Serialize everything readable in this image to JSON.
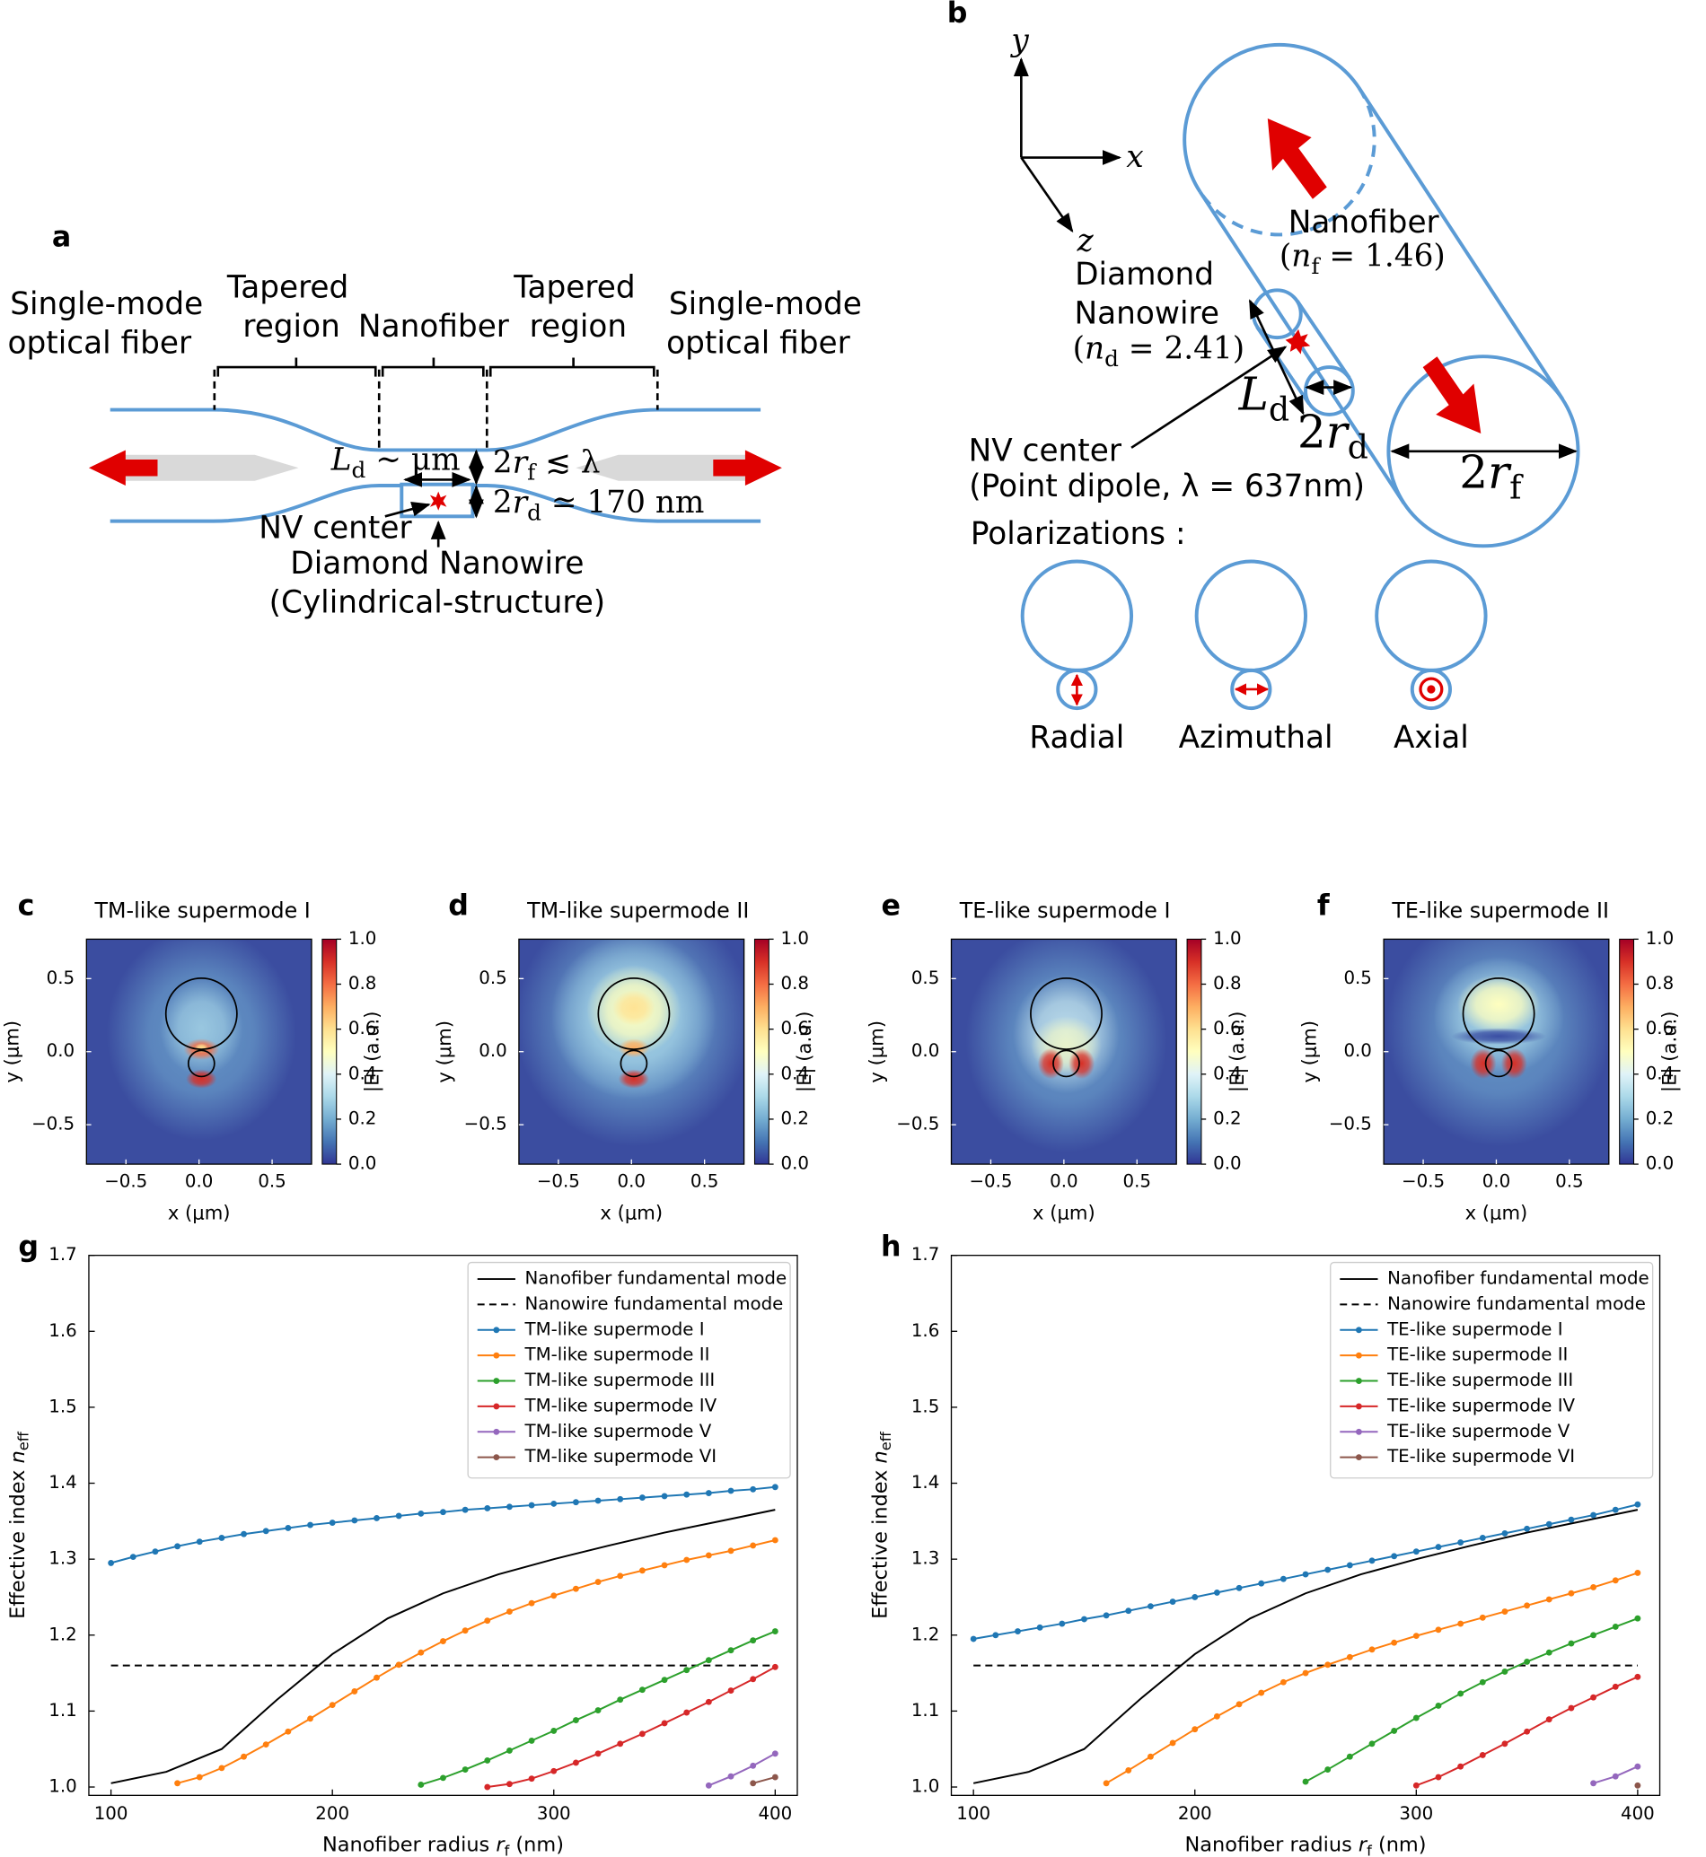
{
  "diagram_a": {
    "label": "a",
    "left_fiber": [
      "Single-mode",
      "optical fiber"
    ],
    "right_fiber": [
      "Single-mode",
      "optical fiber"
    ],
    "left_taper": [
      "Tapered",
      "region"
    ],
    "right_taper": [
      "Tapered",
      "region"
    ],
    "nanofiber": "Nanofiber",
    "length": [
      "L",
      "d",
      " ~ μm"
    ],
    "fiber_diameter": [
      "2",
      "r",
      "f",
      " ≲ λ"
    ],
    "wire_diameter": [
      "2",
      "r",
      "d",
      " ≃ 170 nm"
    ],
    "nv_center": "NV center",
    "nanowire": [
      "Diamond Nanowire",
      "(Cylindrical-structure)"
    ]
  },
  "diagram_b": {
    "label": "b",
    "axis_y": "y",
    "axis_x": "x",
    "axis_z": "z",
    "nanofiber": "Nanofiber",
    "nanofiber_index": [
      "(",
      "n",
      "f",
      " = 1.46)"
    ],
    "diamond": [
      "Diamond",
      "Nanowire"
    ],
    "nanowire_index": [
      "(",
      "n",
      "d",
      " = 2.41)"
    ],
    "length": [
      "L",
      "d"
    ],
    "wire_diameter": [
      "2",
      "r",
      "d"
    ],
    "fiber_diameter": [
      "2",
      "r",
      "f"
    ],
    "nv_center": "NV center",
    "dipole": "(Point dipole, λ = 637nm)",
    "polarizations": "Polarizations :",
    "modes": [
      "Radial",
      "Azimuthal",
      "Axial"
    ]
  },
  "chart_data": [
    {
      "type": "heatmap",
      "panel": "c",
      "title": "TM-like supermode I",
      "xlabel": "x (μm)",
      "ylabel": "y (μm)",
      "xlim": [
        -0.77,
        0.77
      ],
      "ylim": [
        -0.77,
        0.77
      ],
      "xticks": [
        {
          "value": -0.5,
          "label": "−0.5"
        },
        {
          "value": 0,
          "label": "0.0"
        },
        0.5
      ],
      "yticks": [
        {
          "value": -0.5,
          "label": "−0.5"
        },
        {
          "value": 0,
          "label": "0.0"
        },
        0.5
      ],
      "colormap": "RdYlBu_r",
      "colorbar_label": "|E| (a.u.)",
      "colorbar_lim": [
        0,
        1
      ],
      "colorbar_ticks": [
        {
          "value": 0,
          "label": "0.0"
        },
        0.2,
        0.4,
        0.6,
        0.8,
        {
          "value": 1,
          "label": "1.0"
        }
      ]
    },
    {
      "type": "heatmap",
      "panel": "d",
      "title": "TM-like supermode II",
      "xlabel": "x (μm)",
      "ylabel": "y (μm)",
      "xlim": [
        -0.77,
        0.77
      ],
      "ylim": [
        -0.77,
        0.77
      ],
      "xticks": [
        {
          "value": -0.5,
          "label": "−0.5"
        },
        {
          "value": 0,
          "label": "0.0"
        },
        0.5
      ],
      "yticks": [
        {
          "value": -0.5,
          "label": "−0.5"
        },
        {
          "value": 0,
          "label": "0.0"
        },
        0.5
      ],
      "colormap": "RdYlBu_r",
      "colorbar_label": "|E| (a.u.)",
      "colorbar_lim": [
        0,
        1
      ],
      "colorbar_ticks": [
        {
          "value": 0,
          "label": "0.0"
        },
        0.2,
        0.4,
        0.6,
        0.8,
        {
          "value": 1,
          "label": "1.0"
        }
      ]
    },
    {
      "type": "heatmap",
      "panel": "e",
      "title": "TE-like supermode I",
      "xlabel": "x (μm)",
      "ylabel": "y (μm)",
      "xlim": [
        -0.77,
        0.77
      ],
      "ylim": [
        -0.77,
        0.77
      ],
      "xticks": [
        {
          "value": -0.5,
          "label": "−0.5"
        },
        {
          "value": 0,
          "label": "0.0"
        },
        0.5
      ],
      "yticks": [
        {
          "value": -0.5,
          "label": "−0.5"
        },
        {
          "value": 0,
          "label": "0.0"
        },
        0.5
      ],
      "colormap": "RdYlBu_r",
      "colorbar_label": "|E| (a.u.)",
      "colorbar_lim": [
        0,
        1
      ],
      "colorbar_ticks": [
        {
          "value": 0,
          "label": "0.0"
        },
        0.2,
        0.4,
        0.6,
        0.8,
        {
          "value": 1,
          "label": "1.0"
        }
      ]
    },
    {
      "type": "heatmap",
      "panel": "f",
      "title": "TE-like supermode II",
      "xlabel": "x (μm)",
      "ylabel": "y (μm)",
      "xlim": [
        -0.77,
        0.77
      ],
      "ylim": [
        -0.77,
        0.77
      ],
      "xticks": [
        {
          "value": -0.5,
          "label": "−0.5"
        },
        {
          "value": 0,
          "label": "0.0"
        },
        0.5
      ],
      "yticks": [
        {
          "value": -0.5,
          "label": "−0.5"
        },
        {
          "value": 0,
          "label": "0.0"
        },
        0.5
      ],
      "colormap": "RdYlBu_r",
      "colorbar_label": "|E| (a.u.)",
      "colorbar_lim": [
        0,
        1
      ],
      "colorbar_ticks": [
        {
          "value": 0,
          "label": "0.0"
        },
        0.2,
        0.4,
        0.6,
        0.8,
        {
          "value": 1,
          "label": "1.0"
        }
      ]
    },
    {
      "type": "line",
      "panel": "g",
      "xlabel": [
        "Nanofiber radius ",
        "r",
        "f",
        " (nm)"
      ],
      "ylabel": [
        "Effective index ",
        "n",
        "eff"
      ],
      "xlim": [
        90,
        410
      ],
      "ylim": [
        0.989,
        1.7
      ],
      "xticks": [
        100,
        200,
        300,
        400
      ],
      "yticks": [
        {
          "value": 1,
          "label": "1.0"
        },
        1.1,
        1.2,
        1.3,
        1.4,
        1.5,
        1.6,
        1.7
      ],
      "legend": "upper right",
      "series": [
        {
          "name": "Nanofiber fundamental mode",
          "color": "#000000",
          "linestyle": "solid",
          "marker": false,
          "x": [
            100,
            125,
            150,
            175,
            200,
            225,
            250,
            275,
            300,
            325,
            350,
            375,
            400
          ],
          "values": [
            1.005,
            1.02,
            1.05,
            1.115,
            1.175,
            1.222,
            1.255,
            1.28,
            1.3,
            1.318,
            1.335,
            1.35,
            1.365
          ]
        },
        {
          "name": "Nanowire fundamental mode",
          "color": "#000000",
          "linestyle": "dashed",
          "marker": false,
          "x": [
            100,
            400
          ],
          "values": [
            1.16,
            1.16
          ]
        },
        {
          "name": "TM-like supermode I",
          "color": "#1f77b4",
          "linestyle": "solid",
          "marker": true,
          "x": [
            100,
            110,
            120,
            130,
            140,
            150,
            160,
            170,
            180,
            190,
            200,
            210,
            220,
            230,
            240,
            250,
            260,
            270,
            280,
            290,
            300,
            310,
            320,
            330,
            340,
            350,
            360,
            370,
            380,
            390,
            400
          ],
          "values": [
            1.295,
            1.303,
            1.31,
            1.317,
            1.323,
            1.328,
            1.333,
            1.337,
            1.341,
            1.345,
            1.348,
            1.351,
            1.354,
            1.357,
            1.36,
            1.362,
            1.365,
            1.367,
            1.369,
            1.371,
            1.373,
            1.375,
            1.377,
            1.379,
            1.381,
            1.383,
            1.385,
            1.387,
            1.39,
            1.392,
            1.395
          ]
        },
        {
          "name": "TM-like supermode II",
          "color": "#ff7f0e",
          "linestyle": "solid",
          "marker": true,
          "x": [
            130,
            140,
            150,
            160,
            170,
            180,
            190,
            200,
            210,
            220,
            230,
            240,
            250,
            260,
            270,
            280,
            290,
            300,
            310,
            320,
            330,
            340,
            350,
            360,
            370,
            380,
            390,
            400
          ],
          "values": [
            1.005,
            1.013,
            1.025,
            1.04,
            1.056,
            1.073,
            1.09,
            1.108,
            1.126,
            1.144,
            1.161,
            1.177,
            1.192,
            1.206,
            1.219,
            1.231,
            1.242,
            1.252,
            1.261,
            1.27,
            1.278,
            1.285,
            1.292,
            1.299,
            1.305,
            1.311,
            1.318,
            1.325
          ]
        },
        {
          "name": "TM-like supermode III",
          "color": "#2ca02c",
          "linestyle": "solid",
          "marker": true,
          "x": [
            240,
            250,
            260,
            270,
            280,
            290,
            300,
            310,
            320,
            330,
            340,
            350,
            360,
            370,
            380,
            390,
            400
          ],
          "values": [
            1.003,
            1.012,
            1.023,
            1.035,
            1.048,
            1.061,
            1.074,
            1.088,
            1.101,
            1.115,
            1.128,
            1.141,
            1.154,
            1.167,
            1.18,
            1.193,
            1.205
          ]
        },
        {
          "name": "TM-like supermode IV",
          "color": "#d62728",
          "linestyle": "solid",
          "marker": true,
          "x": [
            270,
            280,
            290,
            300,
            310,
            320,
            330,
            340,
            350,
            360,
            370,
            380,
            390,
            400
          ],
          "values": [
            1.0,
            1.004,
            1.011,
            1.021,
            1.032,
            1.044,
            1.057,
            1.07,
            1.084,
            1.098,
            1.112,
            1.127,
            1.142,
            1.158
          ]
        },
        {
          "name": "TM-like supermode V",
          "color": "#9467bd",
          "linestyle": "solid",
          "marker": true,
          "x": [
            370,
            380,
            390,
            400
          ],
          "values": [
            1.002,
            1.014,
            1.028,
            1.044
          ]
        },
        {
          "name": "TM-like supermode VI",
          "color": "#8c564b",
          "linestyle": "solid",
          "marker": true,
          "x": [
            390,
            400
          ],
          "values": [
            1.005,
            1.013
          ]
        }
      ]
    },
    {
      "type": "line",
      "panel": "h",
      "xlabel": [
        "Nanofiber radius ",
        "r",
        "f",
        " (nm)"
      ],
      "ylabel": [
        "Effective index ",
        "n",
        "eff"
      ],
      "xlim": [
        90,
        410
      ],
      "ylim": [
        0.989,
        1.7
      ],
      "xticks": [
        100,
        200,
        300,
        400
      ],
      "yticks": [
        {
          "value": 1,
          "label": "1.0"
        },
        1.1,
        1.2,
        1.3,
        1.4,
        1.5,
        1.6,
        1.7
      ],
      "legend": "upper right",
      "series": [
        {
          "name": "Nanofiber fundamental mode",
          "color": "#000000",
          "linestyle": "solid",
          "marker": false,
          "x": [
            100,
            125,
            150,
            175,
            200,
            225,
            250,
            275,
            300,
            325,
            350,
            375,
            400
          ],
          "values": [
            1.005,
            1.02,
            1.05,
            1.115,
            1.175,
            1.222,
            1.255,
            1.28,
            1.3,
            1.318,
            1.335,
            1.35,
            1.365
          ]
        },
        {
          "name": "Nanowire fundamental mode",
          "color": "#000000",
          "linestyle": "dashed",
          "marker": false,
          "x": [
            100,
            400
          ],
          "values": [
            1.16,
            1.16
          ]
        },
        {
          "name": "TE-like supermode I",
          "color": "#1f77b4",
          "linestyle": "solid",
          "marker": true,
          "x": [
            100,
            110,
            120,
            130,
            140,
            150,
            160,
            170,
            180,
            190,
            200,
            210,
            220,
            230,
            240,
            250,
            260,
            270,
            280,
            290,
            300,
            310,
            320,
            330,
            340,
            350,
            360,
            370,
            380,
            390,
            400
          ],
          "values": [
            1.195,
            1.2,
            1.205,
            1.21,
            1.215,
            1.221,
            1.226,
            1.232,
            1.238,
            1.244,
            1.25,
            1.256,
            1.262,
            1.268,
            1.274,
            1.28,
            1.286,
            1.292,
            1.298,
            1.304,
            1.31,
            1.316,
            1.322,
            1.328,
            1.334,
            1.34,
            1.346,
            1.352,
            1.358,
            1.365,
            1.372
          ]
        },
        {
          "name": "TE-like supermode II",
          "color": "#ff7f0e",
          "linestyle": "solid",
          "marker": true,
          "x": [
            160,
            170,
            180,
            190,
            200,
            210,
            220,
            230,
            240,
            250,
            260,
            270,
            280,
            290,
            300,
            310,
            320,
            330,
            340,
            350,
            360,
            370,
            380,
            390,
            400
          ],
          "values": [
            1.005,
            1.022,
            1.04,
            1.058,
            1.076,
            1.093,
            1.109,
            1.124,
            1.138,
            1.15,
            1.161,
            1.171,
            1.181,
            1.19,
            1.199,
            1.207,
            1.215,
            1.223,
            1.231,
            1.239,
            1.247,
            1.255,
            1.263,
            1.272,
            1.282
          ]
        },
        {
          "name": "TE-like supermode III",
          "color": "#2ca02c",
          "linestyle": "solid",
          "marker": true,
          "x": [
            250,
            260,
            270,
            280,
            290,
            300,
            310,
            320,
            330,
            340,
            350,
            360,
            370,
            380,
            390,
            400
          ],
          "values": [
            1.007,
            1.023,
            1.04,
            1.057,
            1.074,
            1.091,
            1.107,
            1.123,
            1.138,
            1.152,
            1.165,
            1.177,
            1.189,
            1.2,
            1.211,
            1.222
          ]
        },
        {
          "name": "TE-like supermode IV",
          "color": "#d62728",
          "linestyle": "solid",
          "marker": true,
          "x": [
            300,
            310,
            320,
            330,
            340,
            350,
            360,
            370,
            380,
            390,
            400
          ],
          "values": [
            1.002,
            1.013,
            1.027,
            1.042,
            1.057,
            1.073,
            1.089,
            1.104,
            1.118,
            1.132,
            1.145
          ]
        },
        {
          "name": "TE-like supermode V",
          "color": "#9467bd",
          "linestyle": "solid",
          "marker": true,
          "x": [
            380,
            390,
            400
          ],
          "values": [
            1.005,
            1.014,
            1.027
          ]
        },
        {
          "name": "TE-like supermode VI",
          "color": "#8c564b",
          "linestyle": "solid",
          "marker": true,
          "x": [
            400
          ],
          "values": [
            1.002
          ]
        }
      ]
    }
  ]
}
